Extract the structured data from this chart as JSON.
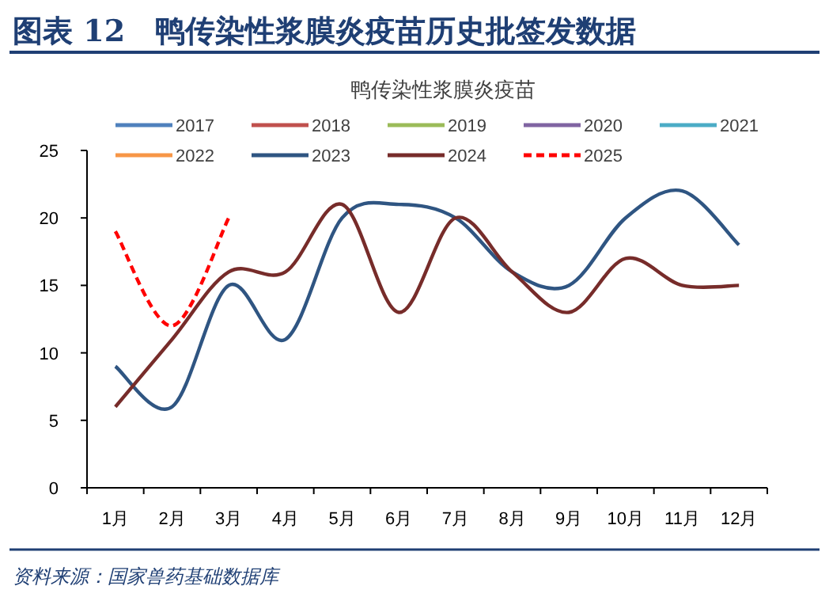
{
  "chart_data": {
    "type": "line",
    "title": "图表 12　鸭传染性浆膜炎疫苗历史批签发数据",
    "subtitle": "鸭传染性浆膜炎疫苗",
    "annotations": [
      "资料来源：国家兽药基础数据库"
    ],
    "categories": [
      "1月",
      "2月",
      "3月",
      "4月",
      "5月",
      "6月",
      "7月",
      "8月",
      "9月",
      "10月",
      "11月",
      "12月"
    ],
    "ylim": [
      0,
      25
    ],
    "yticks": [
      0,
      5,
      10,
      15,
      20,
      25
    ],
    "grid": false,
    "legend": "top",
    "marker": "none",
    "series": [
      {
        "name": "2017",
        "color": "#4f81bd",
        "values": [
          null,
          null,
          null,
          null,
          null,
          null,
          null,
          null,
          null,
          null,
          null,
          null
        ]
      },
      {
        "name": "2018",
        "color": "#c0504d",
        "values": [
          null,
          null,
          null,
          null,
          null,
          null,
          null,
          null,
          null,
          null,
          null,
          null
        ]
      },
      {
        "name": "2019",
        "color": "#9bbb59",
        "values": [
          null,
          null,
          null,
          null,
          null,
          null,
          null,
          null,
          null,
          null,
          null,
          null
        ]
      },
      {
        "name": "2020",
        "color": "#8064a2",
        "values": [
          null,
          null,
          null,
          null,
          null,
          null,
          null,
          null,
          null,
          null,
          null,
          null
        ]
      },
      {
        "name": "2021",
        "color": "#4bacc6",
        "values": [
          null,
          null,
          null,
          null,
          null,
          null,
          null,
          null,
          null,
          null,
          null,
          null
        ]
      },
      {
        "name": "2022",
        "color": "#f79646",
        "values": [
          null,
          null,
          null,
          null,
          null,
          null,
          null,
          null,
          null,
          null,
          null,
          null
        ]
      },
      {
        "name": "2023",
        "color": "#2f5582",
        "values": [
          9,
          6,
          15,
          11,
          20,
          21,
          20,
          16,
          15,
          20,
          22,
          18
        ]
      },
      {
        "name": "2024",
        "color": "#772c2a",
        "values": [
          6,
          11,
          16,
          16,
          21,
          13,
          20,
          16,
          13,
          17,
          15,
          15
        ]
      },
      {
        "name": "2025",
        "color": "#ff0000",
        "line_style": "dashed",
        "values": [
          19,
          12,
          20,
          null,
          null,
          null,
          null,
          null,
          null,
          null,
          null,
          null
        ]
      }
    ]
  }
}
